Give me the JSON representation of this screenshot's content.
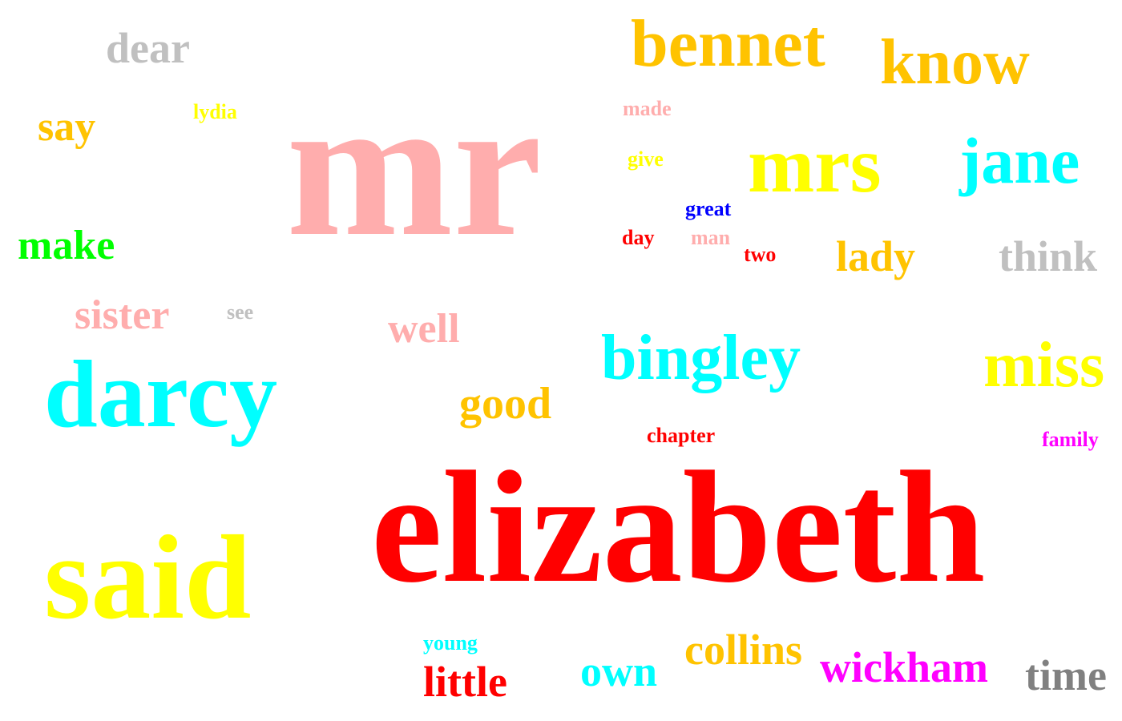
{
  "words": [
    {
      "text": "elizabeth",
      "color": "#ff0000"
    },
    {
      "text": "mr",
      "color": "#ffadad"
    },
    {
      "text": "said",
      "color": "#ffff00"
    },
    {
      "text": "darcy",
      "color": "#00ffff"
    },
    {
      "text": "mrs",
      "color": "#ffff00"
    },
    {
      "text": "bennet",
      "color": "#ffc300"
    },
    {
      "text": "know",
      "color": "#ffc300"
    },
    {
      "text": "jane",
      "color": "#00ffff"
    },
    {
      "text": "bingley",
      "color": "#00ffff"
    },
    {
      "text": "miss",
      "color": "#ffff00"
    },
    {
      "text": "dear",
      "color": "#c0c0c0"
    },
    {
      "text": "say",
      "color": "#ffc300"
    },
    {
      "text": "make",
      "color": "#00ff00"
    },
    {
      "text": "sister",
      "color": "#ffadad"
    },
    {
      "text": "well",
      "color": "#ffadad"
    },
    {
      "text": "good",
      "color": "#ffc300"
    },
    {
      "text": "lady",
      "color": "#ffc300"
    },
    {
      "text": "think",
      "color": "#c0c0c0"
    },
    {
      "text": "collins",
      "color": "#ffc300"
    },
    {
      "text": "wickham",
      "color": "#ff00ff"
    },
    {
      "text": "time",
      "color": "#808080"
    },
    {
      "text": "own",
      "color": "#00ffff"
    },
    {
      "text": "little",
      "color": "#ff0000"
    },
    {
      "text": "young",
      "color": "#00ffff"
    },
    {
      "text": "lydia",
      "color": "#ffff00"
    },
    {
      "text": "made",
      "color": "#ffadad"
    },
    {
      "text": "give",
      "color": "#ffff00"
    },
    {
      "text": "great",
      "color": "#0000ff"
    },
    {
      "text": "day",
      "color": "#ff0000"
    },
    {
      "text": "man",
      "color": "#ffadad"
    },
    {
      "text": "two",
      "color": "#ff0000"
    },
    {
      "text": "see",
      "color": "#c0c0c0"
    },
    {
      "text": "chapter",
      "color": "#ff0000"
    },
    {
      "text": "family",
      "color": "#ff00ff"
    }
  ]
}
